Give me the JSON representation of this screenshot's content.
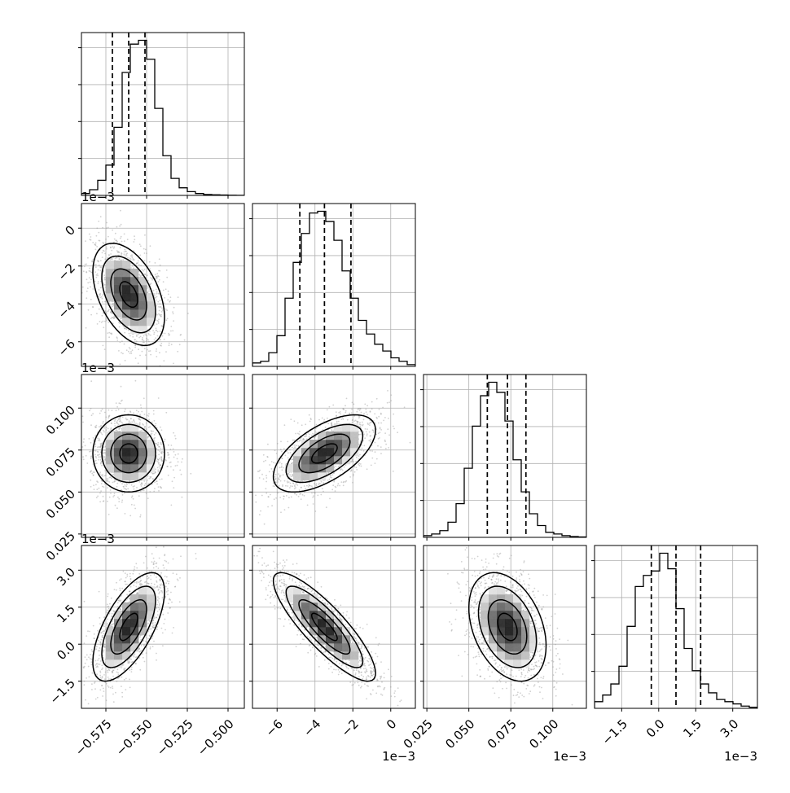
{
  "chart_data": {
    "type": "scatter",
    "title": "",
    "parameters": [
      {
        "name": "",
        "range": [
          -0.59,
          -0.49
        ],
        "ticks": [
          -0.575,
          -0.55,
          -0.525,
          -0.5
        ],
        "tick_labels": [
          "−0.575",
          "−0.550",
          "−0.525",
          "−0.500"
        ],
        "scale_label": "",
        "mean": -0.561,
        "sigma": 0.011,
        "quantiles": [
          -0.571,
          -0.561,
          -0.551
        ]
      },
      {
        "name": "",
        "range": [
          -7.3,
          1.3
        ],
        "ticks": [
          -6,
          -4,
          -2,
          0
        ],
        "tick_labels": [
          "−6",
          "−4",
          "−2",
          "0"
        ],
        "scale_label": "1e−3",
        "mean": -3.5,
        "sigma": 1.35,
        "quantiles": [
          -4.8,
          -3.5,
          -2.1
        ]
      },
      {
        "name": "",
        "range": [
          0.023,
          0.12
        ],
        "ticks": [
          0.025,
          0.05,
          0.075,
          0.1
        ],
        "tick_labels": [
          "0.025",
          "0.050",
          "0.075",
          "0.100"
        ],
        "scale_label": "1e−3",
        "mean": 0.073,
        "sigma": 0.0115,
        "quantiles": [
          0.061,
          0.073,
          0.084
        ]
      },
      {
        "name": "",
        "range": [
          -2.6,
          4.0
        ],
        "ticks": [
          -1.5,
          0.0,
          1.5,
          3.0
        ],
        "tick_labels": [
          "−1.5",
          "0.0",
          "1.5",
          "3.0"
        ],
        "scale_label": "1e−3",
        "mean": 0.7,
        "sigma": 1.1,
        "quantiles": [
          -0.3,
          0.7,
          1.7
        ]
      }
    ],
    "histograms": [
      {
        "parameter": 0,
        "counts": [
          1,
          3,
          8,
          16,
          36,
          65,
          80,
          82,
          72,
          46,
          21,
          9,
          4,
          2,
          1,
          0.5,
          0.3,
          0.2,
          0.1,
          0.05
        ]
      },
      {
        "parameter": 1,
        "counts": [
          2,
          3,
          8,
          18,
          40,
          61,
          78,
          90,
          91,
          85,
          74,
          56,
          40,
          27,
          19,
          13,
          9,
          5,
          3,
          1
        ]
      },
      {
        "parameter": 2,
        "counts": [
          1,
          2,
          4,
          9,
          20,
          41,
          66,
          84,
          92,
          86,
          69,
          46,
          27,
          14,
          7,
          3,
          2,
          1,
          0.5,
          0.2
        ]
      },
      {
        "parameter": 3,
        "counts": [
          3,
          6,
          11,
          19,
          37,
          55,
          60,
          62,
          70,
          63,
          45,
          27,
          17,
          11,
          7,
          4,
          3,
          2,
          1,
          0.5
        ]
      }
    ],
    "correlations": [
      {
        "x": 0,
        "y": 1,
        "rho": -0.45
      },
      {
        "x": 0,
        "y": 2,
        "rho": 0.0
      },
      {
        "x": 1,
        "y": 2,
        "rho": 0.6
      },
      {
        "x": 0,
        "y": 3,
        "rho": 0.65
      },
      {
        "x": 1,
        "y": 3,
        "rho": -0.85
      },
      {
        "x": 2,
        "y": 3,
        "rho": -0.35
      }
    ],
    "contour_levels_sigma": [
      0.5,
      1.0,
      1.5,
      2.0
    ],
    "grid": true,
    "legend": "none",
    "colors": {
      "points": "#9a9a9a",
      "lines": "#000000",
      "grid": "#b0b0b0",
      "density_dark": "#1a1a1a"
    }
  }
}
